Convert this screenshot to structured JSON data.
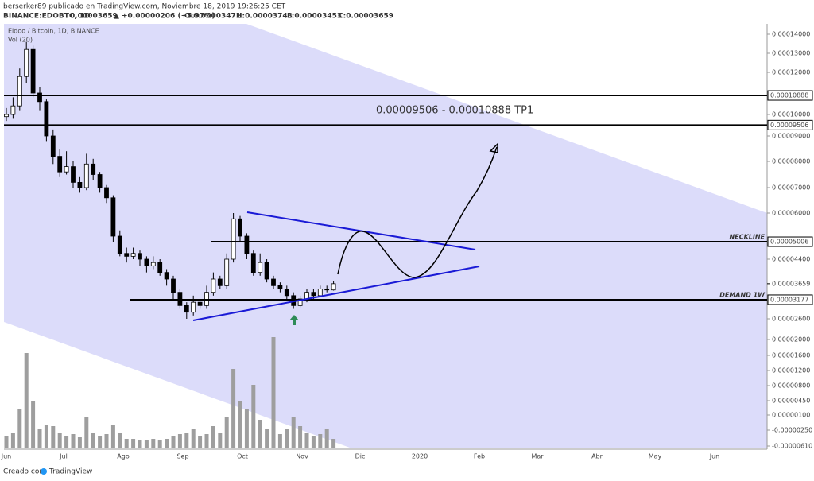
{
  "header": {
    "publisher": "berserker89 publicado en TradingView.com, Noviembre 18, 2019 19:26:25 CET",
    "symbol": "BINANCE:EDOBTC, 1D",
    "last": "0.00003659",
    "change": "+0.00000206 (+5.97%)",
    "open": "O:0.00003471",
    "high": "H:0.00003743",
    "low": "L:0.00003453",
    "close": "C:0.00003659"
  },
  "footer": {
    "created": "Creado con",
    "brand": "TradingView"
  },
  "chart_data": {
    "type": "candlestick",
    "title": "Eidoo / Bitcoin, 1D, BINANCE",
    "volume_label": "Vol (20)",
    "x_labels": [
      "Jun",
      "Jul",
      "Ago",
      "Sep",
      "Oct",
      "Nov",
      "Dic",
      "2020",
      "Feb",
      "Mar",
      "Abr",
      "May",
      "Jun"
    ],
    "open": [
      9.9e-05,
      0.0001,
      0.000104,
      0.000118,
      0.000132,
      0.00011,
      0.000106,
      9e-05,
      8.2e-05,
      7.6e-05,
      7.8e-05,
      7.2e-05,
      7e-05,
      7.9e-05,
      7.5e-05,
      7e-05,
      6.6e-05,
      5.2e-05,
      4.6e-05,
      4.5e-05,
      4.6e-05,
      4.4e-05,
      4.2e-05,
      4.3e-05,
      4e-05,
      3.8e-05,
      3.4e-05,
      3e-05,
      2.8e-05,
      3.1e-05,
      3e-05,
      3.4e-05,
      3.8e-05,
      3.6e-05,
      4.4e-05,
      5.8e-05,
      5.2e-05,
      4.6e-05,
      4e-05,
      4.3e-05,
      3.8e-05,
      3.6e-05,
      3.5e-05,
      3.3e-05,
      3e-05,
      3.2e-05,
      3.4e-05,
      3.3e-05,
      3.5e-05,
      3.471e-05
    ],
    "high": [
      0.000103,
      0.000108,
      0.000122,
      0.000136,
      0.000134,
      0.000113,
      0.000107,
      9.3e-05,
      8.5e-05,
      8.4e-05,
      8e-05,
      7.4e-05,
      8.3e-05,
      8.1e-05,
      7.6e-05,
      7.1e-05,
      6.7e-05,
      5.4e-05,
      4.8e-05,
      4.8e-05,
      4.7e-05,
      4.5e-05,
      4.5e-05,
      4.4e-05,
      4.1e-05,
      3.9e-05,
      3.5e-05,
      3.1e-05,
      3.3e-05,
      3.2e-05,
      3.6e-05,
      4e-05,
      3.9e-05,
      4.6e-05,
      6e-05,
      5.9e-05,
      5.3e-05,
      4.7e-05,
      4.6e-05,
      4.4e-05,
      3.9e-05,
      3.7e-05,
      3.6e-05,
      3.4e-05,
      3.3e-05,
      3.5e-05,
      3.5e-05,
      3.6e-05,
      3.6e-05,
      3.743e-05
    ],
    "low": [
      9.7e-05,
      9.8e-05,
      0.000102,
      0.000115,
      0.000108,
      0.000102,
      8.8e-05,
      7.9e-05,
      7.4e-05,
      7.5e-05,
      7e-05,
      6.8e-05,
      6.9e-05,
      7.3e-05,
      6.8e-05,
      6.4e-05,
      5e-05,
      4.5e-05,
      4.3e-05,
      4.4e-05,
      4.2e-05,
      4e-05,
      4.1e-05,
      3.9e-05,
      3.6e-05,
      3.2e-05,
      2.9e-05,
      2.6e-05,
      2.7e-05,
      2.9e-05,
      2.9e-05,
      3.3e-05,
      3.5e-05,
      3.5e-05,
      4.3e-05,
      5e-05,
      4.4e-05,
      3.9e-05,
      3.9e-05,
      3.7e-05,
      3.5e-05,
      3.4e-05,
      3.2e-05,
      2.9e-05,
      2.95e-05,
      3.1e-05,
      3.2e-05,
      3.25e-05,
      3.4e-05,
      3.453e-05
    ],
    "close": [
      0.0001,
      0.000104,
      0.000118,
      0.000132,
      0.00011,
      0.000106,
      9e-05,
      8.2e-05,
      7.6e-05,
      7.8e-05,
      7.2e-05,
      7e-05,
      7.9e-05,
      7.5e-05,
      7e-05,
      6.6e-05,
      5.2e-05,
      4.6e-05,
      4.5e-05,
      4.6e-05,
      4.4e-05,
      4.2e-05,
      4.3e-05,
      4e-05,
      3.8e-05,
      3.4e-05,
      3e-05,
      2.8e-05,
      3.1e-05,
      3e-05,
      3.4e-05,
      3.8e-05,
      3.6e-05,
      4.4e-05,
      5.8e-05,
      5.2e-05,
      4.6e-05,
      4e-05,
      4.3e-05,
      3.8e-05,
      3.6e-05,
      3.5e-05,
      3.3e-05,
      3e-05,
      3.2e-05,
      3.4e-05,
      3.3e-05,
      3.5e-05,
      3.471e-05,
      3.659e-05
    ],
    "volume": [
      8,
      10,
      25,
      60,
      30,
      12,
      15,
      14,
      10,
      8,
      9,
      7,
      20,
      10,
      8,
      9,
      15,
      10,
      6,
      6,
      5,
      5,
      6,
      5,
      6,
      8,
      9,
      10,
      12,
      8,
      9,
      14,
      10,
      20,
      50,
      30,
      25,
      40,
      18,
      12,
      70,
      9,
      12,
      20,
      14,
      10,
      8,
      9,
      12,
      6
    ],
    "candle_colors": {
      "up": "#ffffff",
      "down": "#000000",
      "border": "#000000",
      "volume": "#9e9e9e"
    },
    "yticks": [
      {
        "value": 0.00014,
        "label": "0.00014000"
      },
      {
        "value": 0.00013,
        "label": "0.00013000"
      },
      {
        "value": 0.00012,
        "label": "0.00012000"
      },
      {
        "value": 0.00011,
        "label": "0.00011000"
      },
      {
        "value": 0.0001,
        "label": "0.00010000"
      },
      {
        "value": 9e-05,
        "label": "0.00009000"
      },
      {
        "value": 8e-05,
        "label": "0.00008000"
      },
      {
        "value": 7e-05,
        "label": "0.00007000"
      },
      {
        "value": 6e-05,
        "label": "0.00006000"
      },
      {
        "value": 4.4e-05,
        "label": "0.00004400"
      },
      {
        "value": 2.6e-05,
        "label": "0.00002600"
      },
      {
        "value": 2e-05,
        "label": "0.00002000"
      },
      {
        "value": 1.6e-05,
        "label": "0.00001600"
      },
      {
        "value": 1.2e-05,
        "label": "0.00001200"
      },
      {
        "value": 8e-06,
        "label": "0.00000800"
      },
      {
        "value": 4.5e-06,
        "label": "0.00000450"
      },
      {
        "value": 1e-06,
        "label": "0.00000100"
      },
      {
        "value": -2.5e-06,
        "label": "-0.00000250"
      },
      {
        "value": -6.1e-06,
        "label": "-0.00000610"
      }
    ],
    "hlines": [
      {
        "value": 0.00010888,
        "label": "0.00010888"
      },
      {
        "value": 9.506e-05,
        "label": "0.00009506"
      },
      {
        "value": 5.006e-05,
        "label": "0.00005006",
        "name": "NECKLINE"
      },
      {
        "value": 3.177e-05,
        "label": "0.00003177",
        "name": "DEMAND 1W"
      }
    ],
    "last_price": {
      "value": 3.659e-05,
      "label": "0.00003659"
    },
    "annotation": "0.00009506 - 0.00010888 TP1"
  }
}
